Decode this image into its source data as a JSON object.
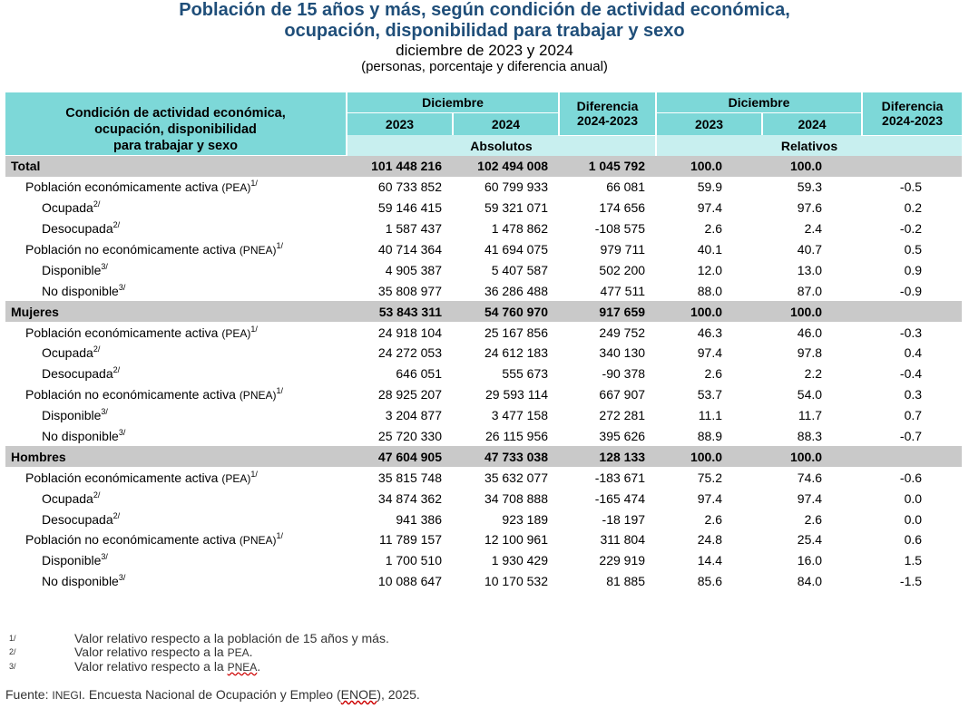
{
  "title": {
    "line1": "Población de 15 años y más, según condición de actividad económica,",
    "line2": "ocupación, disponibilidad para trabajar y sexo",
    "period": "diciembre de 2023 y 2024",
    "units": "(personas, porcentaje y diferencia anual)"
  },
  "header": {
    "col1_line1": "Condición de actividad económica,",
    "col1_line2": "ocupación, disponibilidad",
    "col1_line3": "para trabajar y sexo",
    "diciembre": "Diciembre",
    "diferencia": "Diferencia",
    "diff_years": "2024-2023",
    "y2023": "2023",
    "y2024": "2024",
    "absolutos": "Absolutos",
    "relativos": "Relativos"
  },
  "rows": [
    {
      "label": "Total",
      "abbr": "",
      "note": "",
      "level": 0,
      "v": [
        "101 448 216",
        "102 494 008",
        "1 045 792",
        "100.0",
        "100.0",
        ""
      ]
    },
    {
      "label": "Población económicamente activa ",
      "abbr": "(PEA)",
      "note": "1/",
      "level": 1,
      "v": [
        "60 733 852",
        "60 799 933",
        "66 081",
        "59.9",
        "59.3",
        "-0.5"
      ]
    },
    {
      "label": "Ocupada",
      "abbr": "",
      "note": "2/",
      "level": 2,
      "v": [
        "59 146 415",
        "59 321 071",
        "174 656",
        "97.4",
        "97.6",
        "0.2"
      ]
    },
    {
      "label": "Desocupada",
      "abbr": "",
      "note": "2/",
      "level": 2,
      "v": [
        "1 587 437",
        "1 478 862",
        "-108 575",
        "2.6",
        "2.4",
        "-0.2"
      ]
    },
    {
      "label": "Población no económicamente activa ",
      "abbr": "(PNEA)",
      "note": "1/",
      "level": 1,
      "v": [
        "40 714 364",
        "41 694 075",
        "979 711",
        "40.1",
        "40.7",
        "0.5"
      ]
    },
    {
      "label": "Disponible",
      "abbr": "",
      "note": "3/",
      "level": 2,
      "v": [
        "4 905 387",
        "5 407 587",
        "502 200",
        "12.0",
        "13.0",
        "0.9"
      ]
    },
    {
      "label": "No disponible",
      "abbr": "",
      "note": "3/",
      "level": 2,
      "v": [
        "35 808 977",
        "36 286 488",
        "477 511",
        "88.0",
        "87.0",
        "-0.9"
      ]
    },
    {
      "label": "Mujeres",
      "abbr": "",
      "note": "",
      "level": 0,
      "v": [
        "53 843 311",
        "54 760 970",
        "917 659",
        "100.0",
        "100.0",
        ""
      ]
    },
    {
      "label": "Población económicamente activa ",
      "abbr": "(PEA)",
      "note": "1/",
      "level": 1,
      "v": [
        "24 918 104",
        "25 167 856",
        "249 752",
        "46.3",
        "46.0",
        "-0.3"
      ]
    },
    {
      "label": "Ocupada",
      "abbr": "",
      "note": "2/",
      "level": 2,
      "v": [
        "24 272 053",
        "24 612 183",
        "340 130",
        "97.4",
        "97.8",
        "0.4"
      ]
    },
    {
      "label": "Desocupada",
      "abbr": "",
      "note": "2/",
      "level": 2,
      "v": [
        "646 051",
        "555 673",
        "-90 378",
        "2.6",
        "2.2",
        "-0.4"
      ]
    },
    {
      "label": "Población no económicamente activa ",
      "abbr": "(PNEA)",
      "note": "1/",
      "level": 1,
      "v": [
        "28 925 207",
        "29 593 114",
        "667 907",
        "53.7",
        "54.0",
        "0.3"
      ]
    },
    {
      "label": "Disponible",
      "abbr": "",
      "note": "3/",
      "level": 2,
      "v": [
        "3 204 877",
        "3 477 158",
        "272 281",
        "11.1",
        "11.7",
        "0.7"
      ]
    },
    {
      "label": "No disponible",
      "abbr": "",
      "note": "3/",
      "level": 2,
      "v": [
        "25 720 330",
        "26 115 956",
        "395 626",
        "88.9",
        "88.3",
        "-0.7"
      ]
    },
    {
      "label": "Hombres",
      "abbr": "",
      "note": "",
      "level": 0,
      "v": [
        "47 604 905",
        "47 733 038",
        "128 133",
        "100.0",
        "100.0",
        ""
      ]
    },
    {
      "label": "Población económicamente activa ",
      "abbr": "(PEA)",
      "note": "1/",
      "level": 1,
      "v": [
        "35 815 748",
        "35 632 077",
        "-183 671",
        "75.2",
        "74.6",
        "-0.6"
      ]
    },
    {
      "label": "Ocupada",
      "abbr": "",
      "note": "2/",
      "level": 2,
      "v": [
        "34 874 362",
        "34 708 888",
        "-165 474",
        "97.4",
        "97.4",
        "0.0"
      ]
    },
    {
      "label": "Desocupada",
      "abbr": "",
      "note": "2/",
      "level": 2,
      "v": [
        "941 386",
        "923 189",
        "-18 197",
        "2.6",
        "2.6",
        "0.0"
      ]
    },
    {
      "label": "Población no económicamente activa ",
      "abbr": "(PNEA)",
      "note": "1/",
      "level": 1,
      "v": [
        "11 789 157",
        "12 100 961",
        "311 804",
        "24.8",
        "25.4",
        "0.6"
      ]
    },
    {
      "label": "Disponible",
      "abbr": "",
      "note": "3/",
      "level": 2,
      "v": [
        "1 700 510",
        "1 930 429",
        "229 919",
        "14.4",
        "16.0",
        "1.5"
      ]
    },
    {
      "label": "No disponible",
      "abbr": "",
      "note": "3/",
      "level": 2,
      "v": [
        "10 088 647",
        "10 170 532",
        "81 885",
        "85.6",
        "84.0",
        "-1.5"
      ]
    }
  ],
  "notes": [
    {
      "mark": "1/",
      "text": "Valor relativo respecto a la población de 15 años y más.",
      "abbr": ""
    },
    {
      "mark": "2/",
      "text": "Valor relativo respecto a la ",
      "abbr": "PEA",
      "end": "."
    },
    {
      "mark": "3/",
      "text": "Valor relativo respecto a la ",
      "abbr": "PNEA",
      "end": "."
    }
  ],
  "source": {
    "prefix": "Fuente: ",
    "org": "INEGI",
    "text": ". Encuesta Nacional de Ocupación y Empleo (",
    "survey": "ENOE",
    "end": "), 2025."
  }
}
